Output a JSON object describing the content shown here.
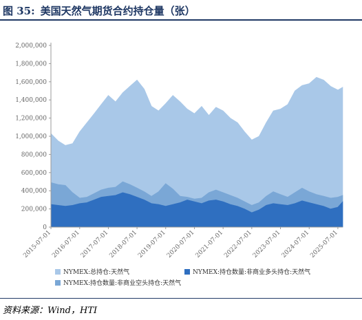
{
  "figure": {
    "label": "图 35:",
    "title": "美国天然气期货合约持仓量（张）"
  },
  "source": "资料来源：Wind，HTI",
  "colors": {
    "total": "#a9c8e8",
    "noncomm_short": "#7aa7d6",
    "noncomm_long": "#2f6fc0",
    "axis": "#999999",
    "tick_text": "#666666"
  },
  "chart_data": {
    "type": "area",
    "x_start": "2015-07-01",
    "x_end": "2025-09-01",
    "xticks": [
      "2015-07-01",
      "2016-07-01",
      "2017-07-01",
      "2018-07-01",
      "2019-07-01",
      "2020-07-01",
      "2021-07-01",
      "2022-07-01",
      "2023-07-01",
      "2024-07-01",
      "2025-07-01"
    ],
    "ylim": [
      0,
      2000000
    ],
    "yticks": [
      "0",
      "200,000",
      "400,000",
      "600,000",
      "800,000",
      "1,000,000",
      "1,200,000",
      "1,400,000",
      "1,600,000",
      "1,800,000",
      "2,000,000"
    ],
    "grid": false,
    "legend": "bottom",
    "series": [
      {
        "name": "NYMEX:总持仓:天然气",
        "key": "total",
        "points": [
          [
            "2015-07-01",
            1030000
          ],
          [
            "2015-10-01",
            950000
          ],
          [
            "2016-01-01",
            900000
          ],
          [
            "2016-04-01",
            920000
          ],
          [
            "2016-07-01",
            1050000
          ],
          [
            "2016-10-01",
            1150000
          ],
          [
            "2017-01-01",
            1250000
          ],
          [
            "2017-04-01",
            1350000
          ],
          [
            "2017-07-01",
            1450000
          ],
          [
            "2017-10-01",
            1380000
          ],
          [
            "2018-01-01",
            1480000
          ],
          [
            "2018-04-01",
            1550000
          ],
          [
            "2018-07-01",
            1620000
          ],
          [
            "2018-10-01",
            1520000
          ],
          [
            "2019-01-01",
            1330000
          ],
          [
            "2019-04-01",
            1280000
          ],
          [
            "2019-07-01",
            1360000
          ],
          [
            "2019-10-01",
            1450000
          ],
          [
            "2020-01-01",
            1380000
          ],
          [
            "2020-04-01",
            1300000
          ],
          [
            "2020-07-01",
            1250000
          ],
          [
            "2020-10-01",
            1330000
          ],
          [
            "2021-01-01",
            1230000
          ],
          [
            "2021-04-01",
            1320000
          ],
          [
            "2021-07-01",
            1280000
          ],
          [
            "2021-10-01",
            1200000
          ],
          [
            "2022-01-01",
            1150000
          ],
          [
            "2022-04-01",
            1050000
          ],
          [
            "2022-07-01",
            960000
          ],
          [
            "2022-10-01",
            1000000
          ],
          [
            "2023-01-01",
            1150000
          ],
          [
            "2023-04-01",
            1280000
          ],
          [
            "2023-07-01",
            1300000
          ],
          [
            "2023-10-01",
            1350000
          ],
          [
            "2024-01-01",
            1500000
          ],
          [
            "2024-04-01",
            1560000
          ],
          [
            "2024-07-01",
            1580000
          ],
          [
            "2024-10-01",
            1650000
          ],
          [
            "2025-01-01",
            1620000
          ],
          [
            "2025-04-01",
            1550000
          ],
          [
            "2025-07-01",
            1510000
          ],
          [
            "2025-09-01",
            1540000
          ]
        ]
      },
      {
        "name": "NYMEX:持仓数量:非商业空头持仓:天然气",
        "key": "noncomm_short",
        "points": [
          [
            "2015-07-01",
            490000
          ],
          [
            "2015-10-01",
            470000
          ],
          [
            "2016-01-01",
            460000
          ],
          [
            "2016-04-01",
            380000
          ],
          [
            "2016-07-01",
            320000
          ],
          [
            "2016-10-01",
            330000
          ],
          [
            "2017-01-01",
            370000
          ],
          [
            "2017-04-01",
            410000
          ],
          [
            "2017-07-01",
            430000
          ],
          [
            "2017-10-01",
            440000
          ],
          [
            "2018-01-01",
            500000
          ],
          [
            "2018-04-01",
            470000
          ],
          [
            "2018-07-01",
            430000
          ],
          [
            "2018-10-01",
            390000
          ],
          [
            "2019-01-01",
            340000
          ],
          [
            "2019-04-01",
            390000
          ],
          [
            "2019-07-01",
            480000
          ],
          [
            "2019-10-01",
            420000
          ],
          [
            "2020-01-01",
            340000
          ],
          [
            "2020-04-01",
            330000
          ],
          [
            "2020-07-01",
            310000
          ],
          [
            "2020-10-01",
            320000
          ],
          [
            "2021-01-01",
            380000
          ],
          [
            "2021-04-01",
            410000
          ],
          [
            "2021-07-01",
            380000
          ],
          [
            "2021-10-01",
            350000
          ],
          [
            "2022-01-01",
            320000
          ],
          [
            "2022-04-01",
            280000
          ],
          [
            "2022-07-01",
            240000
          ],
          [
            "2022-10-01",
            270000
          ],
          [
            "2023-01-01",
            340000
          ],
          [
            "2023-04-01",
            390000
          ],
          [
            "2023-07-01",
            360000
          ],
          [
            "2023-10-01",
            330000
          ],
          [
            "2024-01-01",
            380000
          ],
          [
            "2024-04-01",
            430000
          ],
          [
            "2024-07-01",
            390000
          ],
          [
            "2024-10-01",
            360000
          ],
          [
            "2025-01-01",
            340000
          ],
          [
            "2025-04-01",
            320000
          ],
          [
            "2025-07-01",
            330000
          ],
          [
            "2025-09-01",
            350000
          ]
        ]
      },
      {
        "name": "NYMEX:持仓数量:非商业多头持仓:天然气",
        "key": "noncomm_long",
        "points": [
          [
            "2015-07-01",
            250000
          ],
          [
            "2015-10-01",
            240000
          ],
          [
            "2016-01-01",
            230000
          ],
          [
            "2016-04-01",
            240000
          ],
          [
            "2016-07-01",
            260000
          ],
          [
            "2016-10-01",
            270000
          ],
          [
            "2017-01-01",
            300000
          ],
          [
            "2017-04-01",
            330000
          ],
          [
            "2017-07-01",
            340000
          ],
          [
            "2017-10-01",
            350000
          ],
          [
            "2018-01-01",
            380000
          ],
          [
            "2018-04-01",
            360000
          ],
          [
            "2018-07-01",
            330000
          ],
          [
            "2018-10-01",
            300000
          ],
          [
            "2019-01-01",
            260000
          ],
          [
            "2019-04-01",
            250000
          ],
          [
            "2019-07-01",
            230000
          ],
          [
            "2019-10-01",
            250000
          ],
          [
            "2020-01-01",
            270000
          ],
          [
            "2020-04-01",
            300000
          ],
          [
            "2020-07-01",
            280000
          ],
          [
            "2020-10-01",
            260000
          ],
          [
            "2021-01-01",
            290000
          ],
          [
            "2021-04-01",
            300000
          ],
          [
            "2021-07-01",
            280000
          ],
          [
            "2021-10-01",
            250000
          ],
          [
            "2022-01-01",
            230000
          ],
          [
            "2022-04-01",
            200000
          ],
          [
            "2022-07-01",
            160000
          ],
          [
            "2022-10-01",
            190000
          ],
          [
            "2023-01-01",
            240000
          ],
          [
            "2023-04-01",
            260000
          ],
          [
            "2023-07-01",
            250000
          ],
          [
            "2023-10-01",
            240000
          ],
          [
            "2024-01-01",
            260000
          ],
          [
            "2024-04-01",
            290000
          ],
          [
            "2024-07-01",
            270000
          ],
          [
            "2024-10-01",
            250000
          ],
          [
            "2025-01-01",
            230000
          ],
          [
            "2025-04-01",
            200000
          ],
          [
            "2025-07-01",
            220000
          ],
          [
            "2025-09-01",
            280000
          ]
        ]
      }
    ],
    "legend_entries": [
      {
        "label": "NYMEX:总持仓:天然气",
        "key": "total"
      },
      {
        "label": "NYMEX:持仓数量:非商业多头持仓:天然气",
        "key": "noncomm_long"
      },
      {
        "label": "NYMEX:持仓数量:非商业空头持仓:天然气",
        "key": "noncomm_short"
      }
    ]
  }
}
